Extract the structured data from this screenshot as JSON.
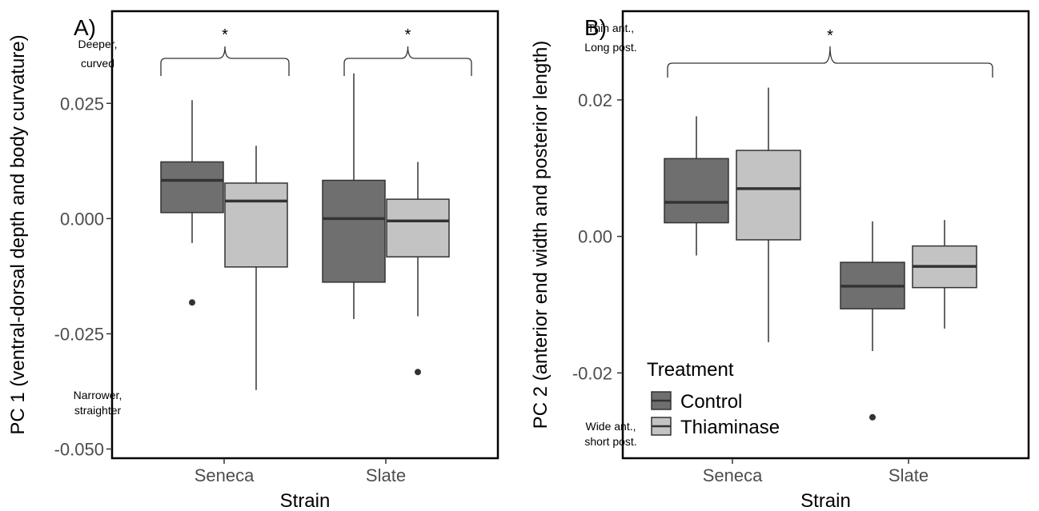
{
  "chart_data": [
    {
      "type": "box",
      "panel_label": "A)",
      "ylabel": "PC 1 (ventral-dorsal depth and body curvature)",
      "xlabel": "Strain",
      "categories": [
        "Seneca",
        "Slate"
      ],
      "ylim": [
        -0.052,
        0.045
      ],
      "yticks": [
        0.025,
        0.0,
        -0.025,
        -0.05
      ],
      "ytick_labels": [
        "0.025",
        "0.000",
        "-0.025",
        "-0.050"
      ],
      "annotations": {
        "top": [
          "Deeper,",
          "curved"
        ],
        "bottom": [
          "Narrower,",
          "straighter"
        ]
      },
      "significance": [
        {
          "over": "Seneca",
          "label": "*"
        },
        {
          "over": "Slate",
          "label": "*"
        }
      ],
      "series": [
        {
          "name": "Control",
          "color": "#6f6f6f",
          "boxes": [
            {
              "category": "Seneca",
              "whislo": -0.0053,
              "q1": 0.0013,
              "med": 0.0083,
              "q3": 0.0123,
              "whishi": 0.0257,
              "fliers": [
                -0.0182
              ]
            },
            {
              "category": "Slate",
              "whislo": -0.0218,
              "q1": -0.0138,
              "med": 0.0,
              "q3": 0.0083,
              "whishi": 0.0315,
              "fliers": []
            }
          ]
        },
        {
          "name": "Thiaminase",
          "color": "#c3c3c3",
          "boxes": [
            {
              "category": "Seneca",
              "whislo": -0.0372,
              "q1": -0.0105,
              "med": 0.0038,
              "q3": 0.0077,
              "whishi": 0.0158,
              "fliers": []
            },
            {
              "category": "Slate",
              "whislo": -0.0212,
              "q1": -0.0083,
              "med": -0.0005,
              "q3": 0.0042,
              "whishi": 0.0123,
              "fliers": [
                -0.0333
              ]
            }
          ]
        }
      ]
    },
    {
      "type": "box",
      "panel_label": "B)",
      "ylabel": "PC 2 (anterior end width and posterior length)",
      "xlabel": "Strain",
      "categories": [
        "Seneca",
        "Slate"
      ],
      "ylim": [
        -0.0325,
        0.033
      ],
      "yticks": [
        0.02,
        0.0,
        -0.02
      ],
      "ytick_labels": [
        "0.02",
        "0.00",
        "-0.02"
      ],
      "annotations": {
        "top": [
          "Thin ant.,",
          "Long post."
        ],
        "bottom": [
          "Wide ant.,",
          "short post."
        ]
      },
      "significance": [
        {
          "over": "all",
          "label": "*"
        }
      ],
      "legend": {
        "title": "Treatment",
        "position": "bottom-left"
      },
      "series": [
        {
          "name": "Control",
          "color": "#6f6f6f",
          "boxes": [
            {
              "category": "Seneca",
              "whislo": -0.0028,
              "q1": 0.002,
              "med": 0.005,
              "q3": 0.0114,
              "whishi": 0.0176,
              "fliers": []
            },
            {
              "category": "Slate",
              "whislo": -0.0168,
              "q1": -0.0106,
              "med": -0.0073,
              "q3": -0.0038,
              "whishi": 0.0022,
              "fliers": [
                -0.0265
              ]
            }
          ]
        },
        {
          "name": "Thiaminase",
          "color": "#c3c3c3",
          "boxes": [
            {
              "category": "Seneca",
              "whislo": -0.0155,
              "q1": -0.0005,
              "med": 0.007,
              "q3": 0.0126,
              "whishi": 0.0218,
              "fliers": []
            },
            {
              "category": "Slate",
              "whislo": -0.0135,
              "q1": -0.0075,
              "med": -0.0044,
              "q3": -0.0014,
              "whishi": 0.0024,
              "fliers": []
            }
          ]
        }
      ]
    }
  ]
}
